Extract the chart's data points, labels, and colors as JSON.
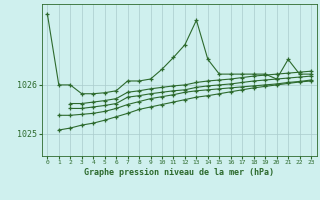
{
  "xlabel": "Graphe pression niveau de la mer (hPa)",
  "bg_color": "#cff0ee",
  "grid_color": "#aacccc",
  "line_color": "#2d6a2d",
  "x_ticks": [
    0,
    1,
    2,
    3,
    4,
    5,
    6,
    7,
    8,
    9,
    10,
    11,
    12,
    13,
    14,
    15,
    16,
    17,
    18,
    19,
    20,
    21,
    22,
    23
  ],
  "ylim": [
    1024.55,
    1027.65
  ],
  "xlim": [
    -0.5,
    23.5
  ],
  "ytick_vals": [
    1025.0,
    1026.0
  ],
  "ytick_labels": [
    "1025",
    "1026"
  ],
  "line1_x": [
    0,
    1,
    2,
    3,
    4,
    5,
    6,
    7,
    8,
    9,
    10,
    11,
    12,
    13,
    14,
    15,
    16,
    17,
    18,
    19,
    20,
    21,
    22,
    23
  ],
  "line1_y": [
    1027.45,
    1026.0,
    1026.0,
    1025.82,
    1025.82,
    1025.84,
    1025.88,
    1026.08,
    1026.08,
    1026.12,
    1026.32,
    1026.56,
    1026.82,
    1027.32,
    1026.52,
    1026.22,
    1026.22,
    1026.22,
    1026.22,
    1026.22,
    1026.12,
    1026.52,
    1026.22,
    1026.22
  ],
  "line2_x": [
    2,
    3,
    4,
    5,
    6,
    7,
    8,
    9,
    10,
    11,
    12,
    13,
    14,
    15,
    16,
    17,
    18,
    19,
    20,
    21,
    22,
    23
  ],
  "line2_y": [
    1025.62,
    1025.62,
    1025.65,
    1025.68,
    1025.72,
    1025.85,
    1025.88,
    1025.92,
    1025.95,
    1025.98,
    1026.0,
    1026.05,
    1026.08,
    1026.1,
    1026.12,
    1026.15,
    1026.18,
    1026.2,
    1026.22,
    1026.24,
    1026.26,
    1026.28
  ],
  "line3_x": [
    2,
    3,
    4,
    5,
    6,
    7,
    8,
    9,
    10,
    11,
    12,
    13,
    14,
    15,
    16,
    17,
    18,
    19,
    20,
    21,
    22,
    23
  ],
  "line3_y": [
    1025.52,
    1025.52,
    1025.55,
    1025.58,
    1025.62,
    1025.75,
    1025.78,
    1025.82,
    1025.85,
    1025.88,
    1025.9,
    1025.95,
    1025.98,
    1026.0,
    1026.02,
    1026.05,
    1026.08,
    1026.1,
    1026.12,
    1026.14,
    1026.16,
    1026.18
  ],
  "line4_x": [
    1,
    2,
    3,
    4,
    5,
    6,
    7,
    8,
    9,
    10,
    11,
    12,
    13,
    14,
    15,
    16,
    17,
    18,
    19,
    20,
    21,
    22,
    23
  ],
  "line4_y": [
    1025.38,
    1025.38,
    1025.4,
    1025.42,
    1025.46,
    1025.52,
    1025.6,
    1025.66,
    1025.72,
    1025.76,
    1025.8,
    1025.85,
    1025.88,
    1025.9,
    1025.92,
    1025.94,
    1025.96,
    1025.98,
    1026.0,
    1026.02,
    1026.05,
    1026.07,
    1026.1
  ],
  "line5_x": [
    1,
    2,
    3,
    4,
    5,
    6,
    7,
    8,
    9,
    10,
    11,
    12,
    13,
    14,
    15,
    16,
    17,
    18,
    19,
    20,
    21,
    22,
    23
  ],
  "line5_y": [
    1025.08,
    1025.12,
    1025.18,
    1025.22,
    1025.28,
    1025.35,
    1025.42,
    1025.5,
    1025.55,
    1025.6,
    1025.65,
    1025.7,
    1025.75,
    1025.78,
    1025.82,
    1025.86,
    1025.9,
    1025.94,
    1025.97,
    1026.0,
    1026.03,
    1026.06,
    1026.08
  ]
}
